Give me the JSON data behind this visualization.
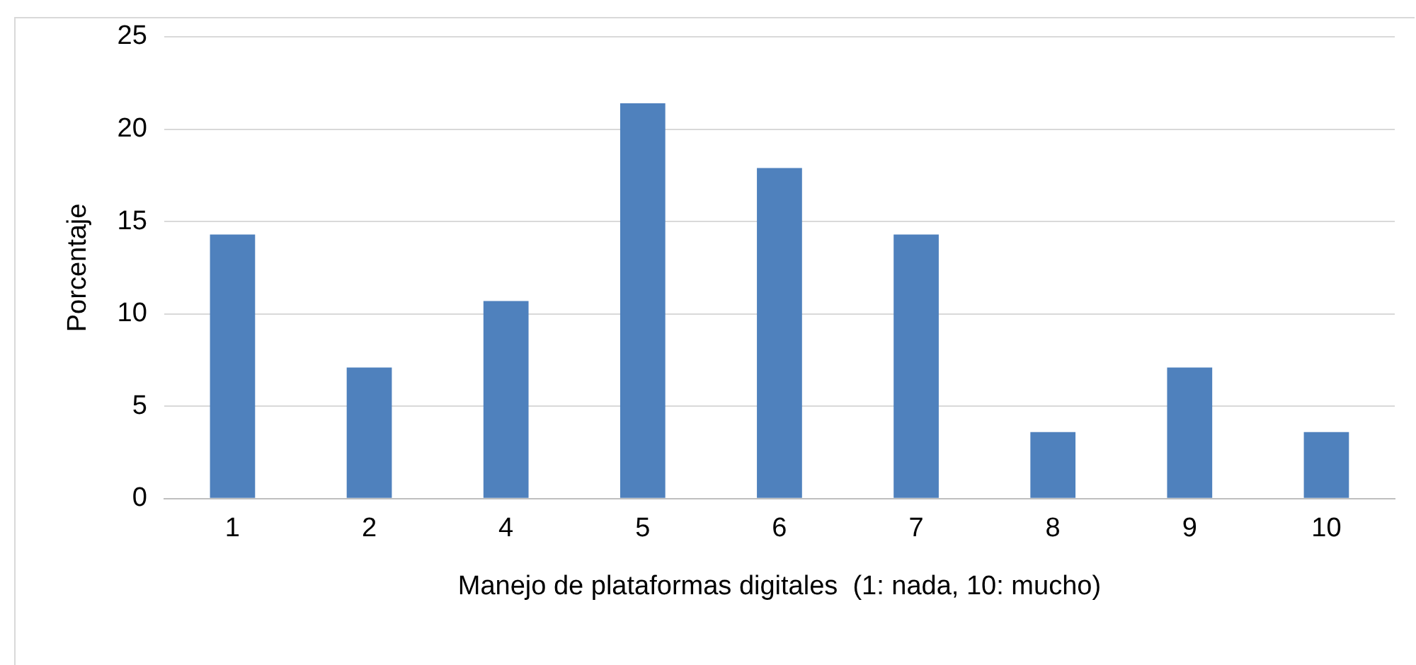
{
  "chart_data": {
    "type": "bar",
    "xlabel": "Manejo de plataformas digitales  (1: nada, 10: mucho)",
    "ylabel": "Porcentaje",
    "categories": [
      "1",
      "2",
      "4",
      "5",
      "6",
      "7",
      "8",
      "9",
      "10"
    ],
    "values": [
      14.3,
      7.1,
      10.7,
      21.4,
      17.9,
      14.3,
      3.6,
      7.1,
      3.6
    ],
    "color": "#4f81bd",
    "ylim": [
      0,
      25
    ],
    "yticks": [
      0,
      5,
      10,
      15,
      20,
      25
    ],
    "grid": "y",
    "legend": false
  }
}
